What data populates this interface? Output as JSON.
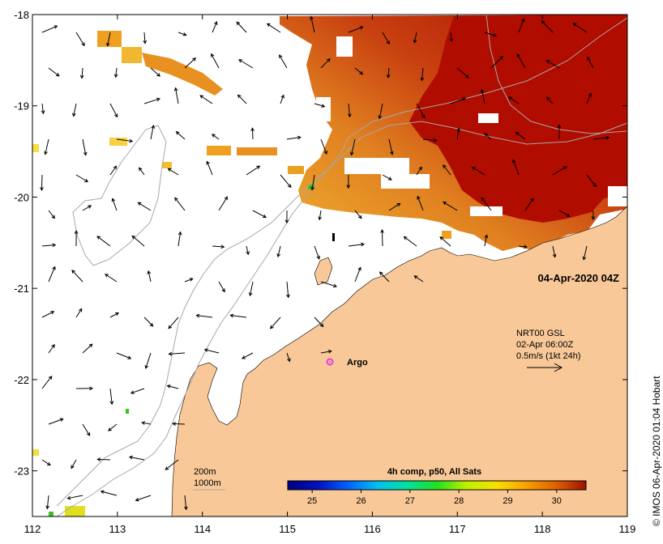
{
  "map": {
    "date_label": "04-Apr-2020 04Z",
    "x_ticks": [
      "112",
      "113",
      "114",
      "115",
      "116",
      "117",
      "118",
      "119"
    ],
    "y_ticks": [
      "-18",
      "-19",
      "-20",
      "-21",
      "-22",
      "-23"
    ],
    "lon_range": [
      112,
      119
    ],
    "lat_range": [
      -23.5,
      -18
    ]
  },
  "current_legend": {
    "line1": "NRT00 GSL",
    "line2": "02-Apr 06:00Z",
    "line3": "0.5m/s (1kt 24h)"
  },
  "argo": {
    "label": "Argo",
    "color": "#e040e0"
  },
  "isobaths": {
    "label1": "200m",
    "label2": "1000m"
  },
  "colorbar": {
    "title": "4h comp, p50, All Sats",
    "ticks": [
      "25",
      "26",
      "27",
      "28",
      "29",
      "30"
    ],
    "range": [
      24.5,
      30.6
    ]
  },
  "credit": "© IMOS 06-Apr-2020 01:04 Hobart",
  "colors": {
    "land": "#f8c898",
    "sst_hot": "#b01000",
    "sst_mid": "#d06010",
    "sst_warm": "#f0a020",
    "isobath": "#a8a8a8"
  }
}
